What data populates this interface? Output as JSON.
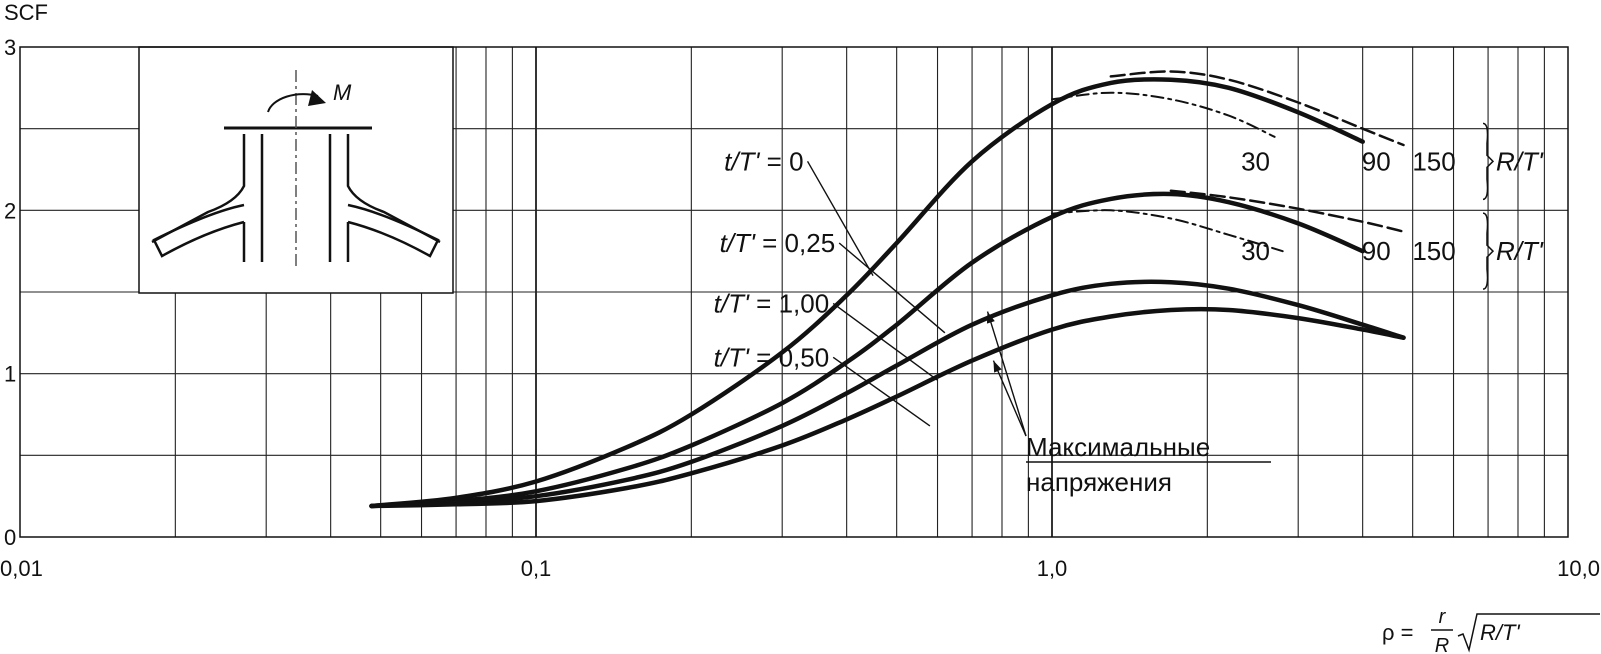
{
  "chart_data": {
    "type": "line",
    "title": "",
    "ylabel": "SCF",
    "xscale": "log",
    "xlim": [
      0.01,
      10.0
    ],
    "ylim": [
      0,
      3
    ],
    "xticks": [
      {
        "value": 0.01,
        "label": "0,01"
      },
      {
        "value": 0.1,
        "label": "0,1"
      },
      {
        "value": 1.0,
        "label": "1,0"
      },
      {
        "value": 10.0,
        "label": "10,0"
      }
    ],
    "yticks": [
      {
        "value": 0,
        "label": "0"
      },
      {
        "value": 1,
        "label": "1"
      },
      {
        "value": 2,
        "label": "2"
      },
      {
        "value": 3,
        "label": "3"
      }
    ],
    "xlabel": {
      "lhs": "ρ =",
      "num": "r",
      "den": "R",
      "root": "R/T'"
    },
    "series": [
      {
        "name": "t/T' = 0",
        "style": "solid",
        "x": [
          0.048,
          0.07,
          0.1,
          0.15,
          0.2,
          0.3,
          0.4,
          0.5,
          0.7,
          1.0,
          1.3,
          1.7,
          2.2,
          3.0,
          4.0
        ],
        "y": [
          0.19,
          0.24,
          0.34,
          0.55,
          0.75,
          1.13,
          1.48,
          1.8,
          2.3,
          2.65,
          2.78,
          2.8,
          2.75,
          2.6,
          2.42
        ]
      },
      {
        "name": "t/T' = 0,25",
        "style": "solid",
        "x": [
          0.048,
          0.07,
          0.1,
          0.15,
          0.2,
          0.3,
          0.4,
          0.5,
          0.7,
          1.0,
          1.3,
          1.7,
          2.2,
          3.0,
          4.0
        ],
        "y": [
          0.19,
          0.22,
          0.28,
          0.42,
          0.56,
          0.82,
          1.07,
          1.3,
          1.68,
          1.96,
          2.07,
          2.1,
          2.05,
          1.92,
          1.75
        ]
      },
      {
        "name": "t/T' = 1,00",
        "style": "solid",
        "x": [
          0.048,
          0.07,
          0.1,
          0.15,
          0.2,
          0.3,
          0.4,
          0.5,
          0.7,
          1.0,
          1.3,
          1.7,
          2.2,
          3.0,
          4.0,
          4.8
        ],
        "y": [
          0.19,
          0.21,
          0.25,
          0.35,
          0.46,
          0.68,
          0.88,
          1.05,
          1.3,
          1.48,
          1.55,
          1.56,
          1.52,
          1.42,
          1.3,
          1.22
        ]
      },
      {
        "name": "t/T' = 0,50",
        "style": "solid",
        "x": [
          0.048,
          0.07,
          0.1,
          0.15,
          0.2,
          0.3,
          0.4,
          0.5,
          0.7,
          1.0,
          1.3,
          1.7,
          2.2,
          3.0,
          4.0,
          4.8
        ],
        "y": [
          0.19,
          0.2,
          0.22,
          0.3,
          0.39,
          0.56,
          0.72,
          0.86,
          1.08,
          1.27,
          1.35,
          1.39,
          1.39,
          1.34,
          1.27,
          1.22
        ]
      },
      {
        "name": "t/T' = 0, R/T' = 30",
        "style": "dashdot",
        "x": [
          1.0,
          1.3,
          1.7,
          2.2,
          2.7
        ],
        "y": [
          2.68,
          2.72,
          2.68,
          2.58,
          2.45
        ]
      },
      {
        "name": "t/T' = 0, R/T' = 150",
        "style": "dashed",
        "x": [
          1.3,
          1.7,
          2.2,
          3.0,
          4.0,
          4.8
        ],
        "y": [
          2.82,
          2.85,
          2.8,
          2.66,
          2.5,
          2.4
        ]
      },
      {
        "name": "t/T' = 0,25, R/T' = 30",
        "style": "dashdot",
        "x": [
          1.0,
          1.3,
          1.7,
          2.2,
          2.8
        ],
        "y": [
          1.98,
          2.0,
          1.95,
          1.85,
          1.75
        ]
      },
      {
        "name": "t/T' = 0,25, R/T' = 150",
        "style": "dashed",
        "x": [
          1.7,
          2.2,
          3.0,
          4.0,
          4.8
        ],
        "y": [
          2.12,
          2.08,
          2.01,
          1.93,
          1.87
        ]
      }
    ],
    "curve_labels": [
      {
        "text": "t/T' = 0",
        "x": 0.33,
        "y": 2.3,
        "to_x": 0.45,
        "to_y": 1.6
      },
      {
        "text": "t/T' = 0,25",
        "x": 0.38,
        "y": 1.8,
        "to_x": 0.62,
        "to_y": 1.25
      },
      {
        "text": "t/T' = 1,00",
        "x": 0.37,
        "y": 1.43,
        "to_x": 0.6,
        "to_y": 0.96
      },
      {
        "text": "t/T' = 0,50",
        "x": 0.37,
        "y": 1.1,
        "to_x": 0.58,
        "to_y": 0.68
      }
    ],
    "rt_labels": {
      "upper": {
        "values": [
          "30",
          "90",
          "150"
        ],
        "y": 2.3,
        "x": [
          2.48,
          4.25,
          5.5
        ],
        "unit": "R/T'"
      },
      "lower": {
        "values": [
          "30",
          "90",
          "150"
        ],
        "y": 1.75,
        "x": [
          2.48,
          4.25,
          5.5
        ],
        "unit": "R/T'"
      }
    },
    "annotation": {
      "lines": [
        "Максимальные",
        "напряжения"
      ],
      "arrows_to": [
        {
          "x": 0.75,
          "y": 1.38
        },
        {
          "x": 0.77,
          "y": 1.08
        }
      ]
    },
    "inset": {
      "moment_label": "M"
    }
  }
}
